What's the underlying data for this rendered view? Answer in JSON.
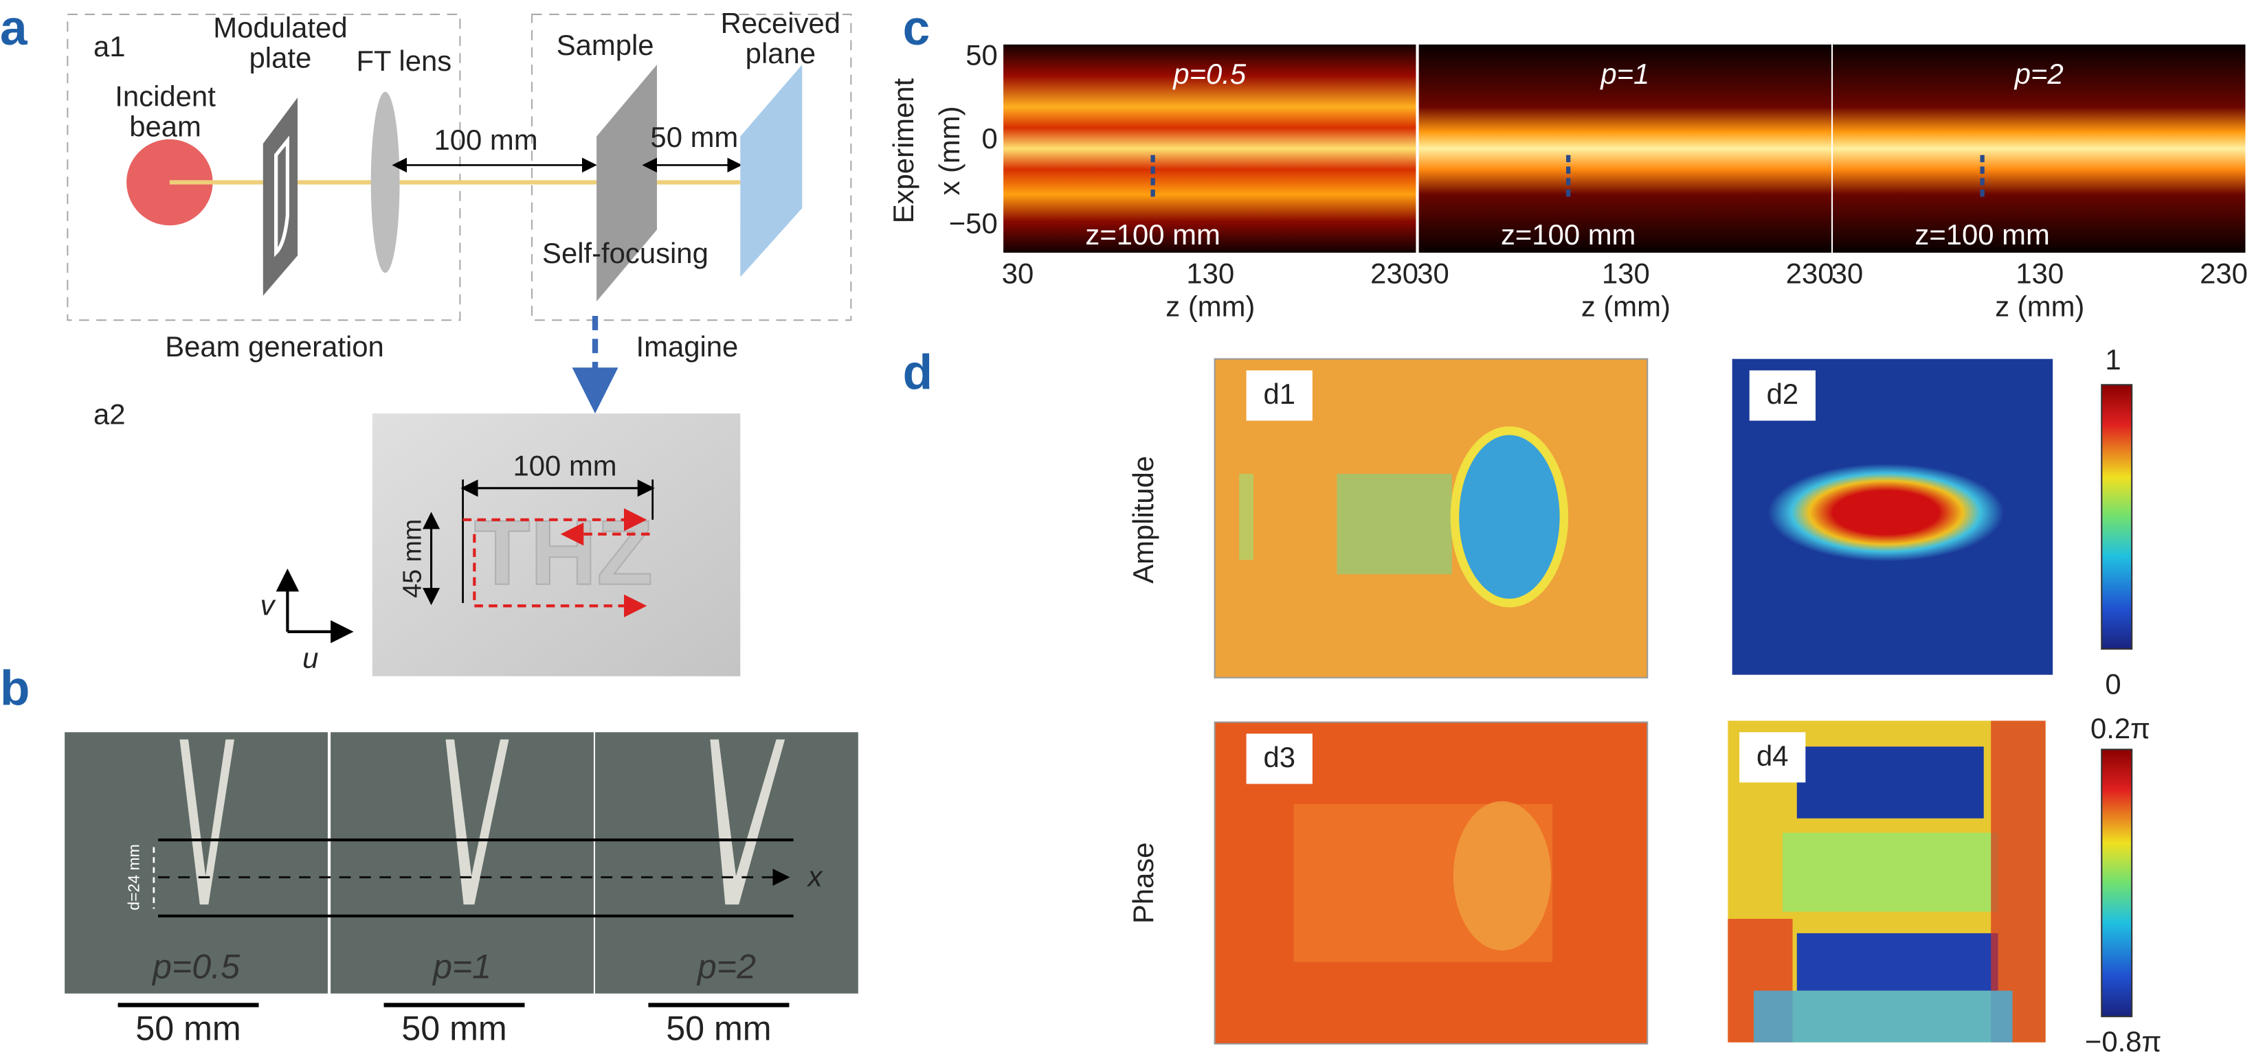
{
  "panel_a": {
    "label": "a",
    "a1": {
      "label": "a1",
      "incident_beam": "Incident beam",
      "modulated_plate": "Modulated plate",
      "ft_lens": "FT lens",
      "sample": "Sample",
      "received_plane": "Received plane",
      "distance_1": "100 mm",
      "distance_2": "50 mm",
      "self_focusing": "Self-focusing",
      "beam_generation": "Beam generation",
      "imaging": "Imagine"
    },
    "a2": {
      "label": "a2",
      "sample_text": "THZ",
      "width": "100 mm",
      "height": "45 mm",
      "axis_v": "v",
      "axis_u": "u"
    }
  },
  "panel_b": {
    "label": "b",
    "d_label": "d=24 mm",
    "x_label": "x",
    "photos": [
      {
        "p": "p=0.5",
        "scale": "50 mm"
      },
      {
        "p": "p=1",
        "scale": "50 mm"
      },
      {
        "p": "p=2",
        "scale": "50 mm"
      }
    ]
  },
  "panel_c": {
    "label": "c",
    "row_label": "Experiment",
    "y_label": "x (mm)",
    "yticks": [
      "50",
      "0",
      "−50"
    ],
    "x_label": "z (mm)",
    "xticks": [
      "30",
      "130",
      "230"
    ],
    "plots": [
      {
        "p": "p=0.5",
        "z": "z=100 mm"
      },
      {
        "p": "p=1",
        "z": "z=100 mm"
      },
      {
        "p": "p=2",
        "z": "z=100 mm"
      }
    ]
  },
  "panel_d": {
    "label": "d",
    "row_labels": [
      "Amplitude",
      "Phase"
    ],
    "subplots": [
      "d1",
      "d2",
      "d3",
      "d4"
    ],
    "amplitude_colorbar": [
      "1",
      "0"
    ],
    "phase_colorbar": [
      "0.2π",
      "−0.8π"
    ]
  }
}
